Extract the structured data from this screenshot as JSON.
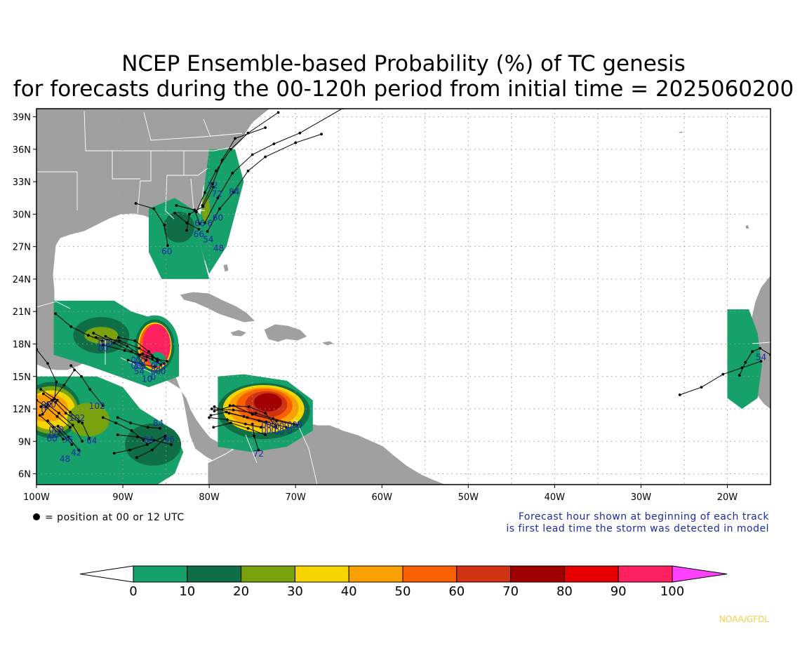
{
  "title": {
    "line1": "NCEP Ensemble-based Probability (%) of TC genesis",
    "line2": "for forecasts during the 00-120h period from initial time = 2025060200"
  },
  "map": {
    "lon_labels": [
      "100W",
      "90W",
      "80W",
      "70W",
      "60W",
      "50W",
      "40W",
      "30W",
      "20W"
    ],
    "lat_labels": [
      "39N",
      "36N",
      "33N",
      "30N",
      "27N",
      "24N",
      "21N",
      "18N",
      "15N",
      "12N",
      "9N",
      "6N"
    ],
    "land_color": "#a0a0a0",
    "ocean_color": "#ffffff"
  },
  "track_labels": [
    {
      "t": "72",
      "lon": -79.6,
      "lat": 32.4
    },
    {
      "t": "72",
      "lon": -79.1,
      "lat": 31.6
    },
    {
      "t": "84",
      "lon": -77.1,
      "lat": 31.8
    },
    {
      "t": "60",
      "lon": -79.0,
      "lat": 29.4
    },
    {
      "t": "66",
      "lon": -81.1,
      "lat": 28.9
    },
    {
      "t": "6",
      "lon": -79.9,
      "lat": 28.9
    },
    {
      "t": "66",
      "lon": -81.2,
      "lat": 27.9
    },
    {
      "t": "54",
      "lon": -80.1,
      "lat": 27.4
    },
    {
      "t": "48",
      "lon": -78.9,
      "lat": 26.6
    },
    {
      "t": "60",
      "lon": -84.9,
      "lat": 26.3
    },
    {
      "t": "52",
      "lon": -88.1,
      "lat": 15.7
    },
    {
      "t": "54",
      "lon": -88.1,
      "lat": 15.2
    },
    {
      "t": "10",
      "lon": -87.2,
      "lat": 14.5
    },
    {
      "t": "102",
      "lon": -93.0,
      "lat": 12.0
    },
    {
      "t": "102",
      "lon": -95.3,
      "lat": 10.9
    },
    {
      "t": "84",
      "lon": -85.9,
      "lat": 10.4
    },
    {
      "t": "84",
      "lon": -87.0,
      "lat": 8.9
    },
    {
      "t": "96",
      "lon": -84.6,
      "lat": 8.9
    },
    {
      "t": "60",
      "lon": -98.2,
      "lat": 9.0
    },
    {
      "t": "36",
      "lon": -96.4,
      "lat": 8.9
    },
    {
      "t": "64",
      "lon": -93.6,
      "lat": 8.8
    },
    {
      "t": "42",
      "lon": -95.4,
      "lat": 7.7
    },
    {
      "t": "48",
      "lon": -96.7,
      "lat": 7.1
    },
    {
      "t": "72",
      "lon": -74.3,
      "lat": 7.6
    },
    {
      "t": "54",
      "lon": -16.1,
      "lat": 16.5
    }
  ],
  "notes": {
    "legend_marker": "= position at 00 or 12 UTC",
    "forecast_line1": "Forecast hour shown at beginning of each track",
    "forecast_line2": "is first lead time the storm was detected in model"
  },
  "colorbar": {
    "ticks": [
      "0",
      "10",
      "20",
      "30",
      "40",
      "50",
      "60",
      "70",
      "80",
      "90",
      "100"
    ],
    "colors": [
      "#16a06a",
      "#0f6e45",
      "#78a20e",
      "#f5d400",
      "#faa000",
      "#fa6000",
      "#d23214",
      "#a00000",
      "#e60000",
      "#ff2060"
    ],
    "below_color": "#ffffff",
    "above_color": "#ff40ff"
  },
  "credit": "NOAA/GFDL"
}
